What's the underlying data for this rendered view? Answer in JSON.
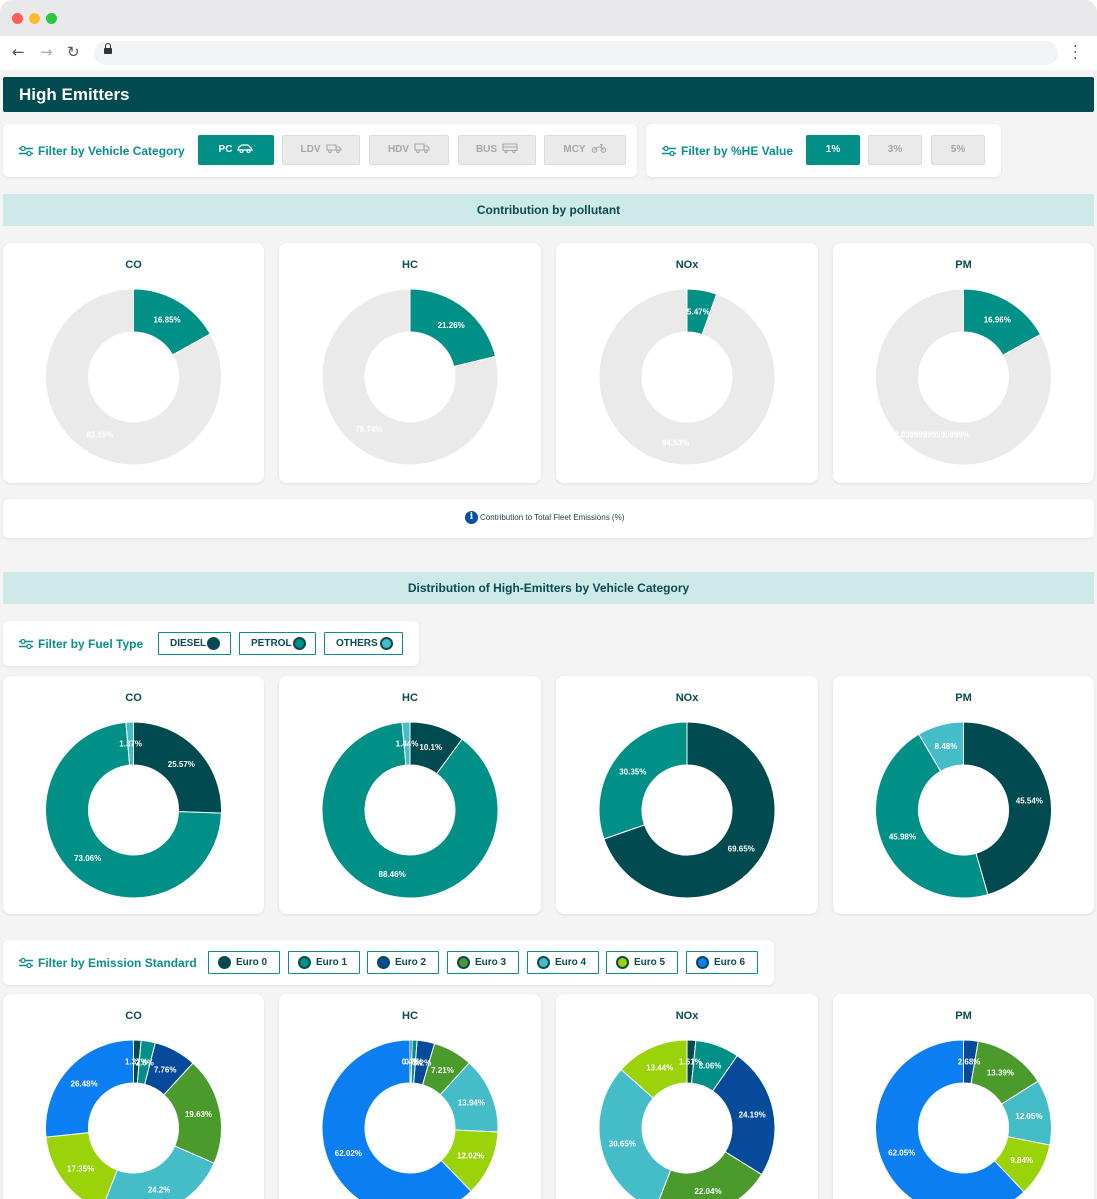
{
  "page": {
    "title": "High Emitters"
  },
  "vehicle_filter": {
    "label": "Filter by Vehicle Category",
    "options": [
      "PC",
      "LDV",
      "HDV",
      "BUS",
      "MCY"
    ],
    "selected": "PC"
  },
  "he_filter": {
    "label": "Filter by %HE Value",
    "options": [
      "1%",
      "3%",
      "5%"
    ],
    "selected": "1%"
  },
  "section1": {
    "title": "Contribution by pollutant"
  },
  "info": {
    "text": "Contribution to Total Fleet Emissions (%)"
  },
  "section2": {
    "title": "Distribution of High-Emitters by Vehicle Category"
  },
  "fuel_filter": {
    "label": "Filter by Fuel Type",
    "options": [
      {
        "label": "DIESEL",
        "color": "#004a50"
      },
      {
        "label": "PETROL",
        "color": "#009087"
      },
      {
        "label": "OTHERS",
        "color": "#45bdc8"
      }
    ]
  },
  "euro_filter": {
    "label": "Filter by Emission Standard",
    "options": [
      {
        "label": "Euro 0",
        "color": "#004a50"
      },
      {
        "label": "Euro 1",
        "color": "#009087"
      },
      {
        "label": "Euro 2",
        "color": "#054b99"
      },
      {
        "label": "Euro 3",
        "color": "#4a9b2c"
      },
      {
        "label": "Euro 4",
        "color": "#45bdc8"
      },
      {
        "label": "Euro 5",
        "color": "#9bd30a"
      },
      {
        "label": "Euro 6",
        "color": "#0b7ff2"
      }
    ]
  },
  "chart_data": [
    {
      "type": "pie",
      "group": "contribution",
      "title": "CO",
      "values": [
        16.85,
        83.15
      ],
      "labels": [
        "16.85%",
        "83.15%"
      ],
      "colors": [
        "#009087",
        "#eaeaea"
      ]
    },
    {
      "type": "pie",
      "group": "contribution",
      "title": "HC",
      "values": [
        21.26,
        78.74
      ],
      "labels": [
        "21.26%",
        "78.74%"
      ],
      "colors": [
        "#009087",
        "#eaeaea"
      ]
    },
    {
      "type": "pie",
      "group": "contribution",
      "title": "NOx",
      "values": [
        5.47,
        94.53
      ],
      "labels": [
        "5.47%",
        "94.53%"
      ],
      "colors": [
        "#009087",
        "#eaeaea"
      ]
    },
    {
      "type": "pie",
      "group": "contribution",
      "title": "PM",
      "values": [
        16.96,
        83.04
      ],
      "labels": [
        "16.96%",
        "83.03999999999999%"
      ],
      "colors": [
        "#009087",
        "#eaeaea"
      ]
    },
    {
      "type": "pie",
      "group": "fuel",
      "title": "CO",
      "values": [
        25.57,
        73.06,
        1.37
      ],
      "labels": [
        "25.57%",
        "73.06%",
        "1.37%"
      ],
      "colors": [
        "#004a50",
        "#009087",
        "#45bdc8"
      ]
    },
    {
      "type": "pie",
      "group": "fuel",
      "title": "HC",
      "values": [
        10.1,
        88.46,
        1.44
      ],
      "labels": [
        "10.1%",
        "88.46%",
        "1.44%"
      ],
      "colors": [
        "#004a50",
        "#009087",
        "#45bdc8"
      ]
    },
    {
      "type": "pie",
      "group": "fuel",
      "title": "NOx",
      "values": [
        69.65,
        30.35,
        0
      ],
      "labels": [
        "69.65%",
        "30.35%",
        ""
      ],
      "colors": [
        "#004a50",
        "#009087",
        "#45bdc8"
      ]
    },
    {
      "type": "pie",
      "group": "fuel",
      "title": "PM",
      "values": [
        45.54,
        45.98,
        8.48
      ],
      "labels": [
        "45.54%",
        "45.98%",
        "8.48%"
      ],
      "colors": [
        "#004a50",
        "#009087",
        "#45bdc8"
      ]
    },
    {
      "type": "pie",
      "group": "euro",
      "title": "CO",
      "values": [
        1.37,
        2.6,
        7.76,
        19.63,
        24.2,
        17.35,
        26.48
      ],
      "labels": [
        "1.37%",
        "2.6%",
        "7.76%",
        "19.63%",
        "24.2%",
        "17.35%",
        "26.48%"
      ],
      "colors": [
        "#004a50",
        "#009087",
        "#054b99",
        "#4a9b2c",
        "#45bdc8",
        "#9bd30a",
        "#0b7ff2"
      ]
    },
    {
      "type": "pie",
      "group": "euro",
      "title": "HC",
      "values": [
        0.4,
        0.9,
        3.2,
        7.21,
        13.94,
        12.02,
        62.02
      ],
      "labels": [
        "0.4%",
        "0.9%",
        "3.2%",
        "7.21%",
        "13.94%",
        "12.02%",
        "62.02%"
      ],
      "colors": [
        "#004a50",
        "#009087",
        "#054b99",
        "#4a9b2c",
        "#45bdc8",
        "#9bd30a",
        "#0b7ff2"
      ]
    },
    {
      "type": "pie",
      "group": "euro",
      "title": "NOx",
      "values": [
        1.61,
        8.06,
        24.19,
        22.04,
        30.65,
        13.44,
        0
      ],
      "labels": [
        "1.61%",
        "8.06%",
        "24.19%",
        "22.04%",
        "30.65%",
        "13.44%",
        ""
      ],
      "colors": [
        "#004a50",
        "#009087",
        "#054b99",
        "#4a9b2c",
        "#45bdc8",
        "#9bd30a",
        "#0b7ff2"
      ]
    },
    {
      "type": "pie",
      "group": "euro",
      "title": "PM",
      "values": [
        0,
        0,
        2.68,
        13.39,
        12.05,
        9.84,
        62.05
      ],
      "labels": [
        "",
        "",
        "2.68%",
        "13.39%",
        "12.05%",
        "9.84%",
        "62.05%"
      ],
      "colors": [
        "#004a50",
        "#009087",
        "#054b99",
        "#4a9b2c",
        "#45bdc8",
        "#9bd30a",
        "#0b7ff2"
      ]
    }
  ]
}
